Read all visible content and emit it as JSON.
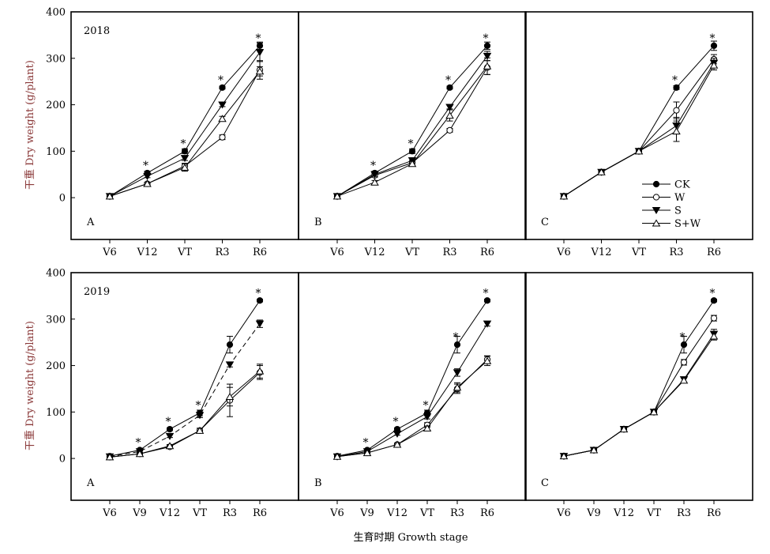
{
  "figure": {
    "ylabel": "干重 Dry weight (g/plant)",
    "xlabel": "生育时期 Growth stage",
    "legend": {
      "entries": [
        {
          "label": "CK",
          "marker": "filled-circle"
        },
        {
          "label": "W",
          "marker": "open-circle"
        },
        {
          "label": "S",
          "marker": "filled-triangle-down"
        },
        {
          "label": "S+W",
          "marker": "open-triangle-up"
        }
      ]
    }
  },
  "chart_data": [
    {
      "type": "line",
      "row": 0,
      "col": 0,
      "panel_label": "A",
      "year": "2018",
      "categories": [
        "V6",
        "V12",
        "VT",
        "R3",
        "R6"
      ],
      "ylim": [
        -90,
        400
      ],
      "yticks": [
        0,
        100,
        200,
        300,
        400
      ],
      "series": [
        {
          "name": "CK",
          "values": [
            3,
            53,
            100,
            237,
            327
          ],
          "errors": [
            2,
            4,
            5,
            3,
            8
          ]
        },
        {
          "name": "W",
          "values": [
            3,
            30,
            68,
            130,
            275
          ],
          "errors": [
            1,
            3,
            6,
            5,
            20
          ]
        },
        {
          "name": "S",
          "values": [
            3,
            46,
            85,
            200,
            313
          ],
          "errors": [
            1,
            3,
            5,
            4,
            20
          ]
        },
        {
          "name": "S+W",
          "values": [
            3,
            30,
            65,
            170,
            272
          ],
          "errors": [
            1,
            3,
            8,
            5,
            10
          ]
        }
      ],
      "dashed": [],
      "significance": [
        {
          "x": "V12",
          "y": 53
        },
        {
          "x": "VT",
          "y": 100
        },
        {
          "x": "R3",
          "y": 237
        },
        {
          "x": "R6",
          "y": 327
        }
      ]
    },
    {
      "type": "line",
      "row": 0,
      "col": 1,
      "panel_label": "B",
      "year": "",
      "categories": [
        "V6",
        "V12",
        "VT",
        "R3",
        "R6"
      ],
      "ylim": [
        -90,
        400
      ],
      "yticks": [
        0,
        100,
        200,
        300,
        400
      ],
      "series": [
        {
          "name": "CK",
          "values": [
            3,
            53,
            100,
            237,
            327
          ],
          "errors": [
            2,
            4,
            5,
            3,
            8
          ]
        },
        {
          "name": "W",
          "values": [
            3,
            48,
            75,
            145,
            280
          ],
          "errors": [
            1,
            4,
            5,
            4,
            15
          ]
        },
        {
          "name": "S",
          "values": [
            3,
            50,
            80,
            195,
            305
          ],
          "errors": [
            1,
            4,
            5,
            4,
            10
          ]
        },
        {
          "name": "S+W",
          "values": [
            3,
            33,
            73,
            177,
            283
          ],
          "errors": [
            1,
            4,
            5,
            12,
            18
          ]
        }
      ],
      "dashed": [],
      "significance": [
        {
          "x": "V12",
          "y": 53
        },
        {
          "x": "VT",
          "y": 100
        },
        {
          "x": "R3",
          "y": 237
        },
        {
          "x": "R6",
          "y": 327
        }
      ]
    },
    {
      "type": "line",
      "row": 0,
      "col": 2,
      "panel_label": "C",
      "year": "",
      "categories": [
        "V6",
        "V12",
        "VT",
        "R3",
        "R6"
      ],
      "ylim": [
        -90,
        400
      ],
      "yticks": [
        0,
        100,
        200,
        300,
        400
      ],
      "series": [
        {
          "name": "CK",
          "values": [
            3,
            55,
            100,
            237,
            327
          ],
          "errors": [
            1,
            2,
            3,
            4,
            10
          ]
        },
        {
          "name": "W",
          "values": [
            3,
            55,
            100,
            188,
            298
          ],
          "errors": [
            1,
            2,
            3,
            18,
            10
          ]
        },
        {
          "name": "S",
          "values": [
            3,
            55,
            100,
            155,
            290
          ],
          "errors": [
            1,
            2,
            3,
            18,
            10
          ]
        },
        {
          "name": "S+W",
          "values": [
            3,
            55,
            100,
            143,
            285
          ],
          "errors": [
            1,
            2,
            3,
            22,
            10
          ]
        }
      ],
      "dashed": [],
      "significance": [
        {
          "x": "R3",
          "y": 237
        },
        {
          "x": "R6",
          "y": 327
        }
      ]
    },
    {
      "type": "line",
      "row": 1,
      "col": 0,
      "panel_label": "A",
      "year": "2019",
      "categories": [
        "V6",
        "V9",
        "V12",
        "VT",
        "R3",
        "R6"
      ],
      "ylim": [
        -90,
        400
      ],
      "yticks": [
        0,
        100,
        200,
        300,
        400
      ],
      "series": [
        {
          "name": "CK",
          "values": [
            5,
            18,
            63,
            98,
            245,
            340
          ],
          "errors": [
            1,
            2,
            3,
            6,
            18,
            3
          ]
        },
        {
          "name": "W",
          "values": [
            3,
            10,
            25,
            60,
            125,
            185
          ],
          "errors": [
            1,
            2,
            3,
            5,
            35,
            15
          ]
        },
        {
          "name": "S",
          "values": [
            4,
            15,
            48,
            93,
            202,
            290
          ],
          "errors": [
            1,
            2,
            3,
            5,
            5,
            8
          ]
        },
        {
          "name": "S+W",
          "values": [
            3,
            10,
            27,
            60,
            133,
            188
          ],
          "errors": [
            1,
            2,
            3,
            5,
            20,
            15
          ]
        }
      ],
      "dashed": [
        "S"
      ],
      "significance": [
        {
          "x": "V9",
          "y": 18
        },
        {
          "x": "V12",
          "y": 63
        },
        {
          "x": "VT",
          "y": 98
        },
        {
          "x": "R6",
          "y": 340
        }
      ]
    },
    {
      "type": "line",
      "row": 1,
      "col": 1,
      "panel_label": "B",
      "year": "",
      "categories": [
        "V6",
        "V9",
        "V12",
        "VT",
        "R3",
        "R6"
      ],
      "ylim": [
        -90,
        400
      ],
      "yticks": [
        0,
        100,
        200,
        300,
        400
      ],
      "series": [
        {
          "name": "CK",
          "values": [
            5,
            18,
            63,
            98,
            245,
            340
          ],
          "errors": [
            1,
            2,
            3,
            6,
            18,
            3
          ]
        },
        {
          "name": "W",
          "values": [
            4,
            12,
            30,
            72,
            150,
            213
          ],
          "errors": [
            1,
            2,
            3,
            5,
            10,
            8
          ]
        },
        {
          "name": "S",
          "values": [
            4,
            15,
            53,
            90,
            185,
            290
          ],
          "errors": [
            1,
            2,
            3,
            5,
            8,
            5
          ]
        },
        {
          "name": "S+W",
          "values": [
            4,
            12,
            30,
            65,
            153,
            210
          ],
          "errors": [
            1,
            2,
            3,
            5,
            10,
            10
          ]
        }
      ],
      "dashed": [],
      "significance": [
        {
          "x": "V9",
          "y": 18
        },
        {
          "x": "V12",
          "y": 63
        },
        {
          "x": "VT",
          "y": 98
        },
        {
          "x": "R3",
          "y": 245
        },
        {
          "x": "R6",
          "y": 340
        }
      ]
    },
    {
      "type": "line",
      "row": 1,
      "col": 2,
      "panel_label": "C",
      "year": "",
      "categories": [
        "V6",
        "V9",
        "V12",
        "VT",
        "R3",
        "R6"
      ],
      "ylim": [
        -90,
        400
      ],
      "yticks": [
        0,
        100,
        200,
        300,
        400
      ],
      "series": [
        {
          "name": "CK",
          "values": [
            5,
            18,
            63,
            100,
            245,
            340
          ],
          "errors": [
            1,
            1,
            2,
            3,
            18,
            3
          ]
        },
        {
          "name": "W",
          "values": [
            5,
            18,
            63,
            100,
            207,
            302
          ],
          "errors": [
            1,
            1,
            2,
            3,
            6,
            6
          ]
        },
        {
          "name": "S",
          "values": [
            5,
            18,
            63,
            100,
            170,
            268
          ],
          "errors": [
            1,
            1,
            2,
            3,
            5,
            10
          ]
        },
        {
          "name": "S+W",
          "values": [
            5,
            18,
            63,
            100,
            168,
            263
          ],
          "errors": [
            1,
            1,
            2,
            3,
            5,
            8
          ]
        }
      ],
      "dashed": [],
      "significance": [
        {
          "x": "R3",
          "y": 245
        },
        {
          "x": "R6",
          "y": 340
        }
      ]
    }
  ]
}
